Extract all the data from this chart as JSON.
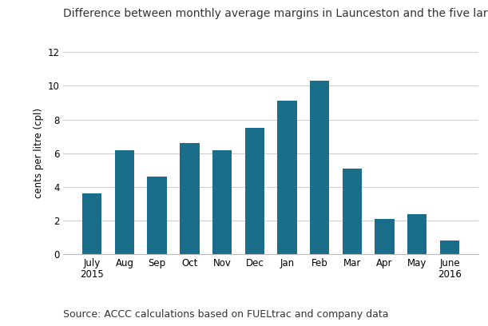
{
  "title": "Difference between monthly average margins in Launceston and the five largest cities",
  "categories": [
    "July\n2015",
    "Aug",
    "Sep",
    "Oct",
    "Nov",
    "Dec",
    "Jan",
    "Feb",
    "Mar",
    "Apr",
    "May",
    "June\n2016"
  ],
  "values": [
    3.6,
    6.2,
    4.6,
    6.6,
    6.2,
    7.5,
    9.1,
    10.3,
    5.1,
    2.1,
    2.4,
    0.8
  ],
  "bar_color": "#1a6e8a",
  "ylabel": "cents per litre (cpl)",
  "ylim": [
    0,
    12
  ],
  "yticks": [
    0,
    2,
    4,
    6,
    8,
    10,
    12
  ],
  "source_text": "Source: ACCC calculations based on FUELtrac and company data",
  "background_color": "#ffffff",
  "title_fontsize": 10,
  "ylabel_fontsize": 8.5,
  "tick_fontsize": 8.5,
  "source_fontsize": 9,
  "grid_color": "#cccccc",
  "bar_width": 0.6
}
